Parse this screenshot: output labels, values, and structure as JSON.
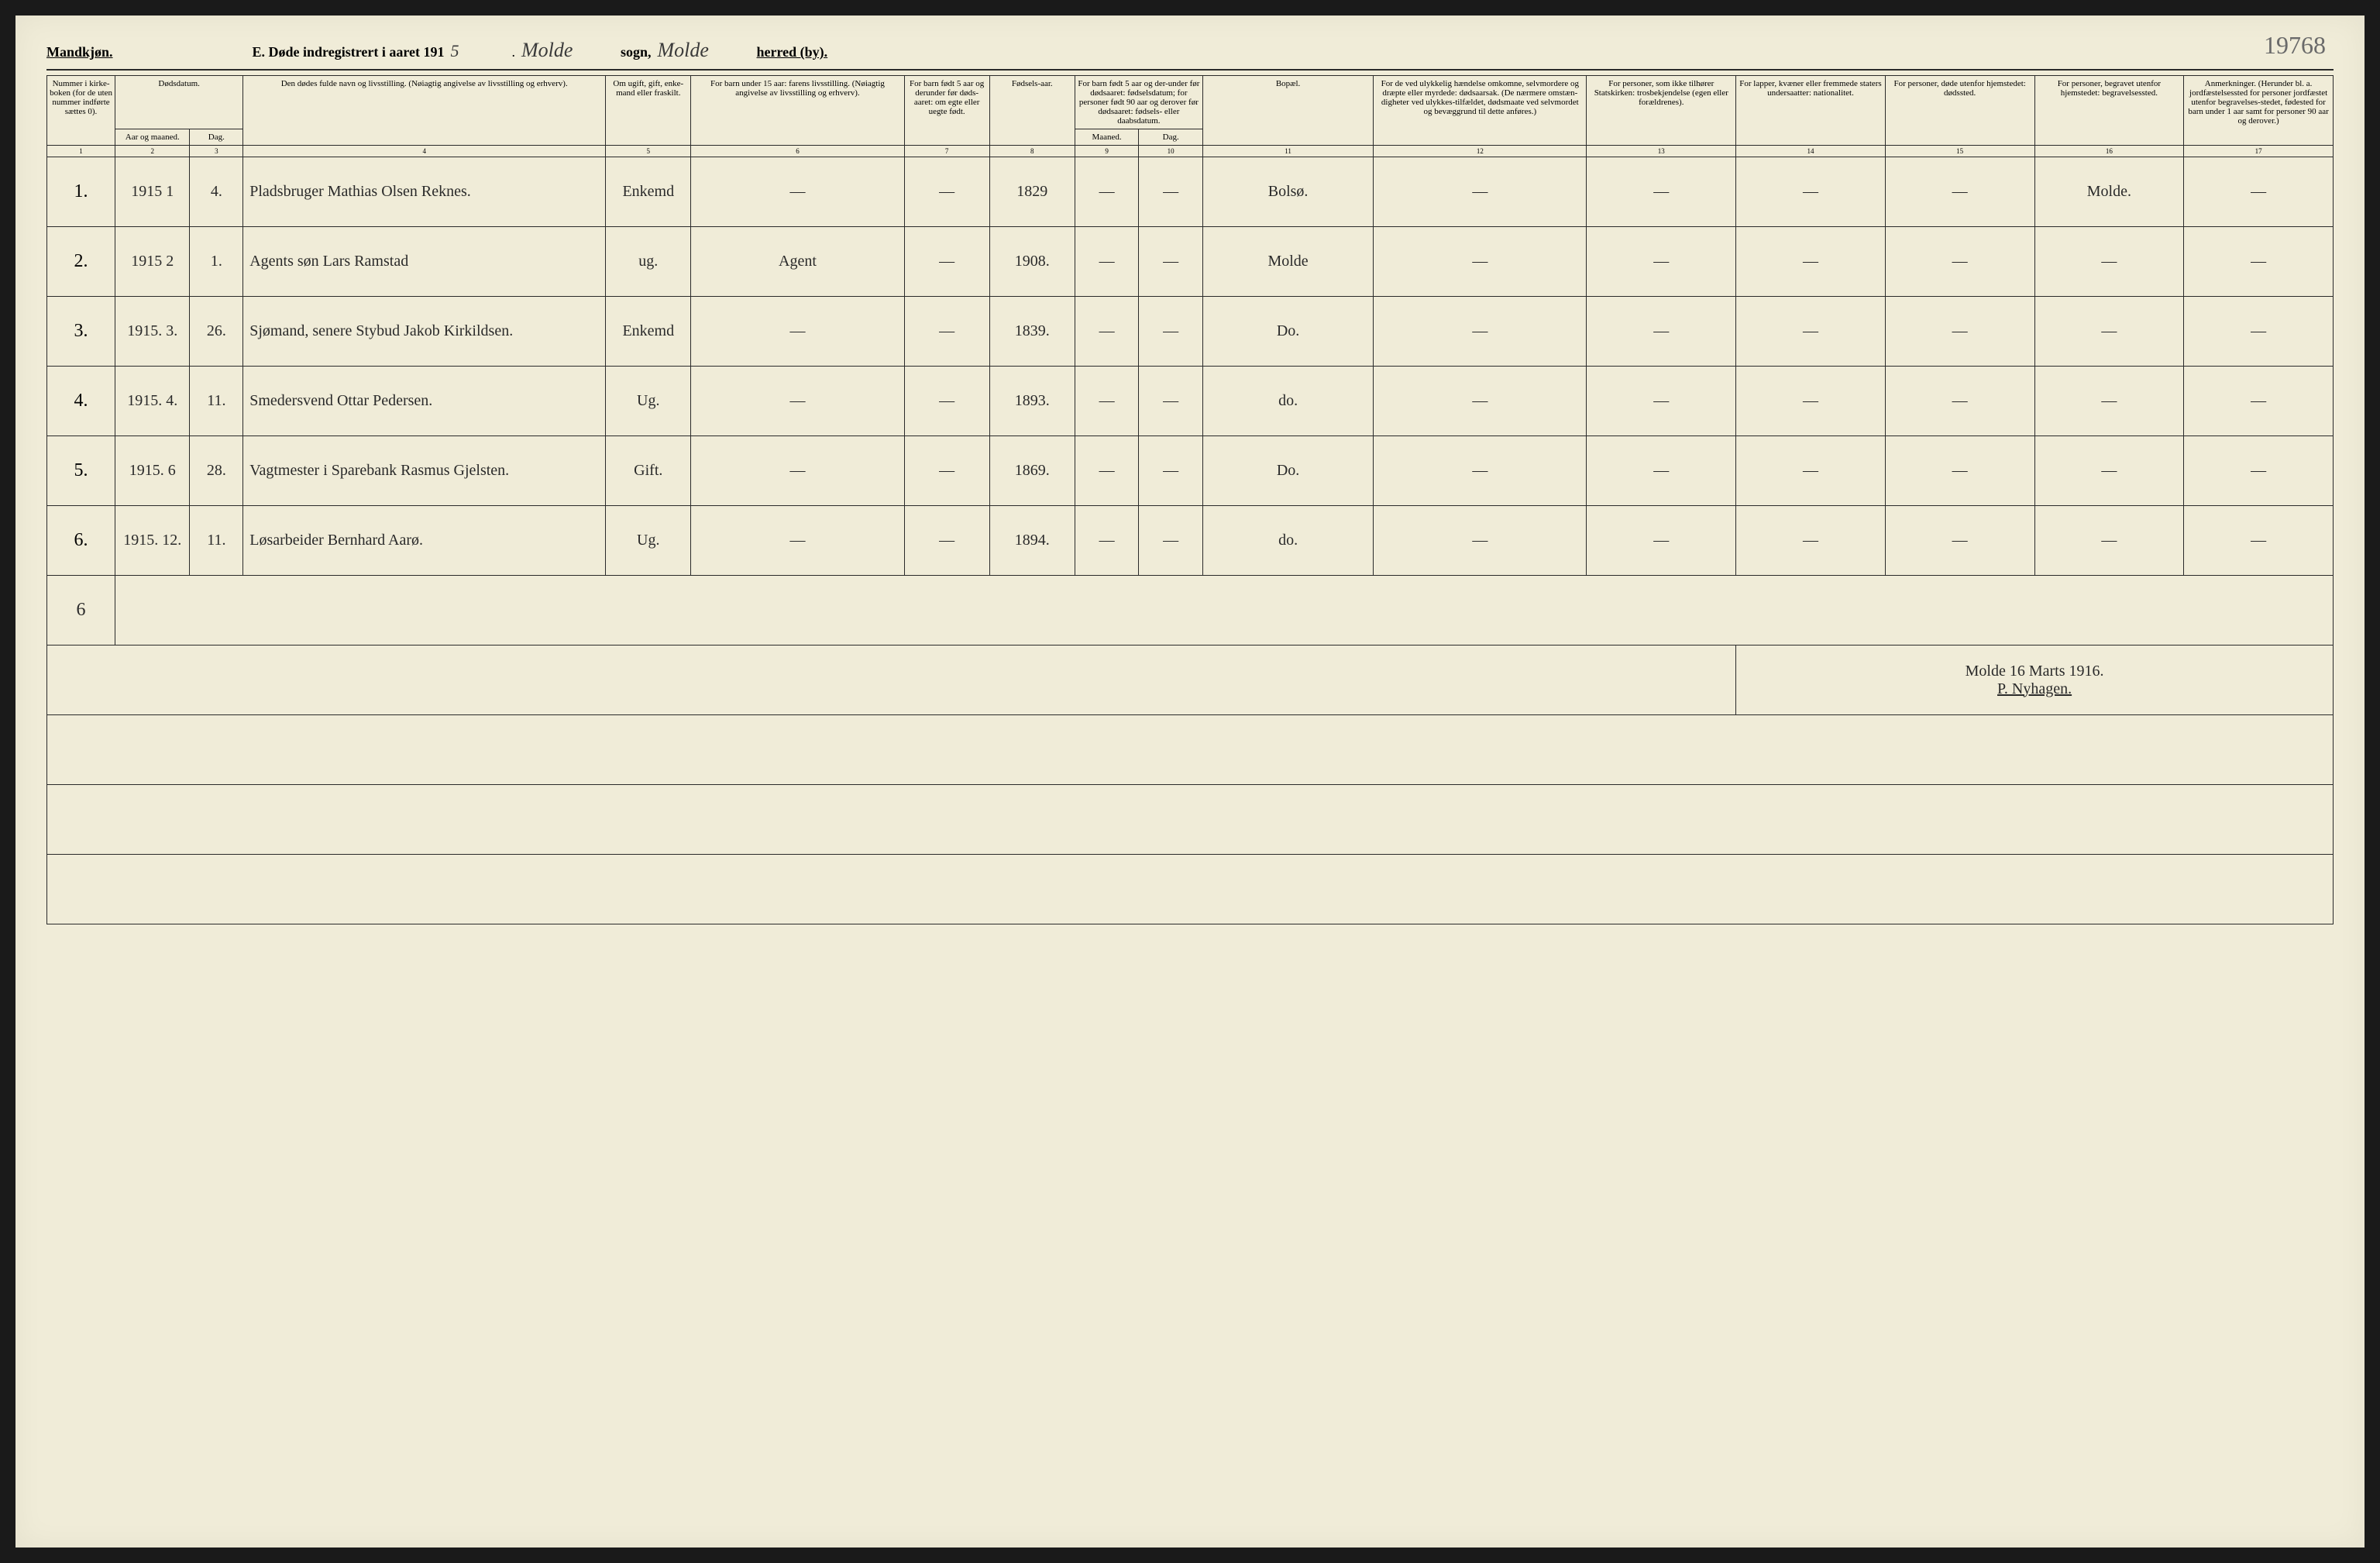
{
  "page_number": "19768",
  "header": {
    "gender_label": "Mandkjøn.",
    "title_prefix": "E.  Døde indregistrert i aaret 191",
    "year_suffix": "5",
    "sogn_label": "sogn,",
    "sogn_value": "Molde",
    "herred_label": "herred (by).",
    "herred_value": "Molde"
  },
  "columns": {
    "c1": "Nummer i kirke-boken (for de uten nummer indførte sættes 0).",
    "c2a": "Dødsdatum.",
    "c2_aar": "Aar og maaned.",
    "c2_dag": "Dag.",
    "c4": "Den dødes fulde navn og livsstilling. (Nøiagtig angivelse av livsstilling og erhverv).",
    "c5": "Om ugift, gift, enke-mand eller fraskilt.",
    "c6": "For barn under 15 aar: farens livsstilling. (Nøiagtig angivelse av livsstilling og erhverv).",
    "c7": "For barn født 5 aar og derunder før døds-aaret: om egte eller uegte født.",
    "c8": "Fødsels-aar.",
    "c9_10": "For barn født 5 aar og der-under før dødsaaret: fødselsdatum; for personer født 90 aar og derover før dødsaaret: fødsels- eller daabsdatum.",
    "c9": "Maaned.",
    "c10": "Dag.",
    "c11": "Bopæl.",
    "c12": "For de ved ulykkelig hændelse omkomne, selvmordere og dræpte eller myrdede: dødsaarsak. (De nærmere omstæn-digheter ved ulykkes-tilfældet, dødsmaate ved selvmordet og bevæggrund til dette anføres.)",
    "c13": "For personer, som ikke tilhører Statskirken: trosbekjendelse (egen eller forældrenes).",
    "c14": "For lapper, kvæner eller fremmede staters undersaatter: nationalitet.",
    "c15": "For personer, døde utenfor hjemstedet: dødssted.",
    "c16": "For personer, begravet utenfor hjemstedet: begravelsessted.",
    "c17": "Anmerkninger. (Herunder bl. a. jordfæstelsessted for personer jordfæstet utenfor begravelses-stedet, fødested for barn under 1 aar samt for personer 90 aar og derover.)"
  },
  "colnums": [
    "1",
    "2",
    "3",
    "4",
    "5",
    "6",
    "7",
    "8",
    "9",
    "10",
    "11",
    "12",
    "13",
    "14",
    "15",
    "16",
    "17"
  ],
  "rows": [
    {
      "n": "1.",
      "aar": "1915 1",
      "dag": "4.",
      "navn": "Pladsbruger Mathias Olsen Reknes.",
      "stand": "Enkemd",
      "faren": "—",
      "egte": "—",
      "faar": "1829",
      "fm": "—",
      "fd": "—",
      "bopel": "Bolsø.",
      "c12": "—",
      "c13": "—",
      "c14": "—",
      "c15": "—",
      "c16": "Molde.",
      "c17": "—"
    },
    {
      "n": "2.",
      "aar": "1915 2",
      "dag": "1.",
      "navn": "Agents søn Lars Ramstad",
      "stand": "ug.",
      "faren": "Agent",
      "egte": "—",
      "faar": "1908.",
      "fm": "—",
      "fd": "—",
      "bopel": "Molde",
      "c12": "—",
      "c13": "—",
      "c14": "—",
      "c15": "—",
      "c16": "—",
      "c17": "—"
    },
    {
      "n": "3.",
      "aar": "1915. 3.",
      "dag": "26.",
      "navn": "Sjømand, senere Stybud Jakob Kirkildsen.",
      "stand": "Enkemd",
      "faren": "—",
      "egte": "—",
      "faar": "1839.",
      "fm": "—",
      "fd": "—",
      "bopel": "Do.",
      "c12": "—",
      "c13": "—",
      "c14": "—",
      "c15": "—",
      "c16": "—",
      "c17": "—"
    },
    {
      "n": "4.",
      "aar": "1915. 4.",
      "dag": "11.",
      "navn": "Smedersvend Ottar Pedersen.",
      "stand": "Ug.",
      "faren": "—",
      "egte": "—",
      "faar": "1893.",
      "fm": "—",
      "fd": "—",
      "bopel": "do.",
      "c12": "—",
      "c13": "—",
      "c14": "—",
      "c15": "—",
      "c16": "—",
      "c17": "—"
    },
    {
      "n": "5.",
      "aar": "1915. 6",
      "dag": "28.",
      "navn": "Vagtmester i Sparebank Rasmus Gjelsten.",
      "stand": "Gift.",
      "faren": "—",
      "egte": "—",
      "faar": "1869.",
      "fm": "—",
      "fd": "—",
      "bopel": "Do.",
      "c12": "—",
      "c13": "—",
      "c14": "—",
      "c15": "—",
      "c16": "—",
      "c17": "—"
    },
    {
      "n": "6.",
      "aar": "1915. 12.",
      "dag": "11.",
      "navn": "Løsarbeider Bernhard Aarø.",
      "stand": "Ug.",
      "faren": "—",
      "egte": "—",
      "faar": "1894.",
      "fm": "—",
      "fd": "—",
      "bopel": "do.",
      "c12": "—",
      "c13": "—",
      "c14": "—",
      "c15": "—",
      "c16": "—",
      "c17": "—"
    }
  ],
  "tally": "6",
  "signature": {
    "place_date": "Molde 16 Marts 1916.",
    "name": "P. Nyhagen."
  },
  "colors": {
    "paper": "#f0ecd8",
    "ink": "#2a2a2a",
    "handwriting": "#3a3a3a"
  },
  "col_widths_pct": [
    3.2,
    3.5,
    2.5,
    17,
    4,
    10,
    4,
    4,
    3,
    3,
    8,
    10,
    7,
    7,
    7,
    7,
    7
  ]
}
